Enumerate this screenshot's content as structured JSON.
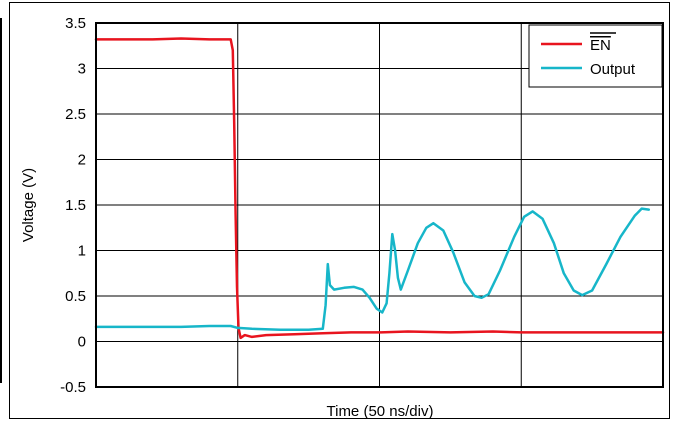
{
  "chart_data": {
    "type": "line",
    "xlabel": "Time (50 ns/div)",
    "ylabel": "Voltage (V)",
    "x_unit": "division (50 ns/div)",
    "xlim": [
      0,
      4
    ],
    "ylim": [
      -0.5,
      3.5
    ],
    "ytick_labels": [
      "3.5",
      "3",
      "2.5",
      "2",
      "1.5",
      "1",
      "0.5",
      "0",
      "-0.5"
    ],
    "ytick_values": [
      3.5,
      3,
      2.5,
      2,
      1.5,
      1,
      0.5,
      0,
      -0.5
    ],
    "xtick_labels": [],
    "grid": true,
    "legend_position": "top-right",
    "series": [
      {
        "name": "EN",
        "overline": true,
        "color": "#e8141e",
        "points": [
          [
            0.0,
            3.32
          ],
          [
            0.2,
            3.32
          ],
          [
            0.4,
            3.32
          ],
          [
            0.6,
            3.33
          ],
          [
            0.8,
            3.32
          ],
          [
            0.95,
            3.32
          ],
          [
            0.965,
            3.2
          ],
          [
            0.975,
            2.4
          ],
          [
            0.985,
            1.4
          ],
          [
            0.995,
            0.6
          ],
          [
            1.005,
            0.15
          ],
          [
            1.02,
            0.04
          ],
          [
            1.05,
            0.07
          ],
          [
            1.1,
            0.05
          ],
          [
            1.2,
            0.07
          ],
          [
            1.4,
            0.08
          ],
          [
            1.6,
            0.09
          ],
          [
            1.8,
            0.1
          ],
          [
            2.0,
            0.1
          ],
          [
            2.2,
            0.11
          ],
          [
            2.5,
            0.1
          ],
          [
            2.8,
            0.11
          ],
          [
            3.0,
            0.1
          ],
          [
            3.3,
            0.1
          ],
          [
            3.6,
            0.1
          ],
          [
            3.8,
            0.1
          ],
          [
            4.0,
            0.1
          ]
        ]
      },
      {
        "name": "Output",
        "overline": false,
        "color": "#17b6c9",
        "points": [
          [
            0.0,
            0.16
          ],
          [
            0.2,
            0.16
          ],
          [
            0.4,
            0.16
          ],
          [
            0.6,
            0.16
          ],
          [
            0.8,
            0.17
          ],
          [
            0.95,
            0.17
          ],
          [
            1.0,
            0.15
          ],
          [
            1.1,
            0.14
          ],
          [
            1.3,
            0.13
          ],
          [
            1.5,
            0.13
          ],
          [
            1.6,
            0.14
          ],
          [
            1.62,
            0.4
          ],
          [
            1.635,
            0.85
          ],
          [
            1.65,
            0.62
          ],
          [
            1.68,
            0.57
          ],
          [
            1.75,
            0.59
          ],
          [
            1.82,
            0.6
          ],
          [
            1.88,
            0.57
          ],
          [
            1.93,
            0.48
          ],
          [
            1.98,
            0.36
          ],
          [
            2.02,
            0.32
          ],
          [
            2.05,
            0.42
          ],
          [
            2.07,
            0.75
          ],
          [
            2.09,
            1.18
          ],
          [
            2.11,
            1.0
          ],
          [
            2.13,
            0.7
          ],
          [
            2.15,
            0.57
          ],
          [
            2.2,
            0.78
          ],
          [
            2.27,
            1.08
          ],
          [
            2.33,
            1.25
          ],
          [
            2.38,
            1.3
          ],
          [
            2.45,
            1.22
          ],
          [
            2.52,
            0.98
          ],
          [
            2.6,
            0.65
          ],
          [
            2.67,
            0.5
          ],
          [
            2.72,
            0.48
          ],
          [
            2.77,
            0.52
          ],
          [
            2.85,
            0.78
          ],
          [
            2.95,
            1.15
          ],
          [
            3.02,
            1.37
          ],
          [
            3.08,
            1.43
          ],
          [
            3.15,
            1.35
          ],
          [
            3.23,
            1.08
          ],
          [
            3.3,
            0.75
          ],
          [
            3.37,
            0.56
          ],
          [
            3.43,
            0.51
          ],
          [
            3.5,
            0.56
          ],
          [
            3.6,
            0.85
          ],
          [
            3.7,
            1.15
          ],
          [
            3.8,
            1.38
          ],
          [
            3.85,
            1.46
          ],
          [
            3.9,
            1.45
          ]
        ]
      }
    ]
  }
}
